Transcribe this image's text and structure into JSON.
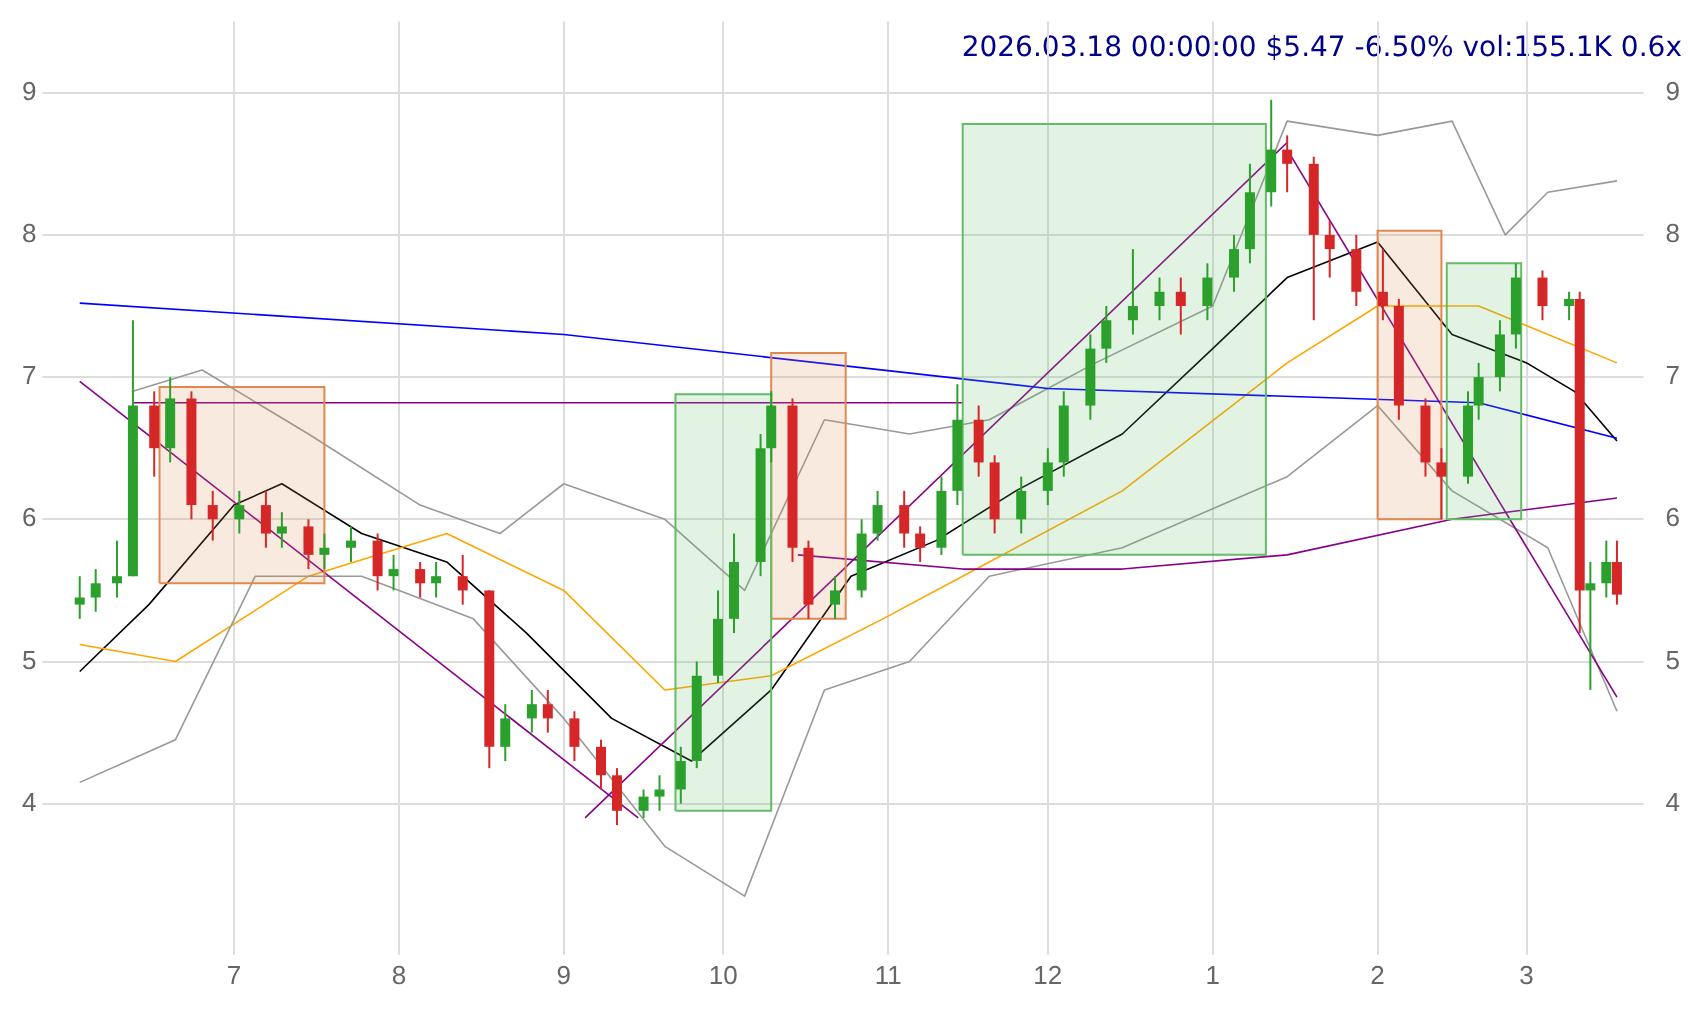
{
  "chart_data": {
    "type": "candlestick",
    "title": "2026.03.18 00:00:00 $5.47 -6.50% vol:155.1K 0.6x",
    "x": [
      "2025-06-02",
      "2025-06-05",
      "2025-06-09",
      "2025-06-12",
      "2025-06-16",
      "2025-06-19",
      "2025-06-23",
      "2025-06-27",
      "2025-07-02",
      "2025-07-07",
      "2025-07-10",
      "2025-07-15",
      "2025-07-18",
      "2025-07-23",
      "2025-07-28",
      "2025-07-31",
      "2025-08-05",
      "2025-08-08",
      "2025-08-13",
      "2025-08-18",
      "2025-08-21",
      "2025-08-26",
      "2025-08-29",
      "2025-09-03",
      "2025-09-08",
      "2025-09-11",
      "2025-09-16",
      "2025-09-19",
      "2025-09-23",
      "2025-09-26",
      "2025-09-30",
      "2025-10-03",
      "2025-10-08",
      "2025-10-10",
      "2025-10-14",
      "2025-10-17",
      "2025-10-22",
      "2025-10-27",
      "2025-10-30",
      "2025-11-04",
      "2025-11-07",
      "2025-11-11",
      "2025-11-14",
      "2025-11-18",
      "2025-11-21",
      "2025-11-26",
      "2025-12-01",
      "2025-12-04",
      "2025-12-09",
      "2025-12-12",
      "2025-12-17",
      "2025-12-22",
      "2025-12-26",
      "2025-12-31",
      "2026-01-05",
      "2026-01-08",
      "2026-01-12",
      "2026-01-15",
      "2026-01-20",
      "2026-01-23",
      "2026-01-28",
      "2026-02-02",
      "2026-02-05",
      "2026-02-10",
      "2026-02-13",
      "2026-02-18",
      "2026-02-20",
      "2026-02-24",
      "2026-02-27",
      "2026-03-04",
      "2026-03-09",
      "2026-03-11",
      "2026-03-13",
      "2026-03-16",
      "2026-03-18"
    ],
    "ohlc": [
      [
        5.4,
        5.6,
        5.3,
        5.45
      ],
      [
        5.45,
        5.65,
        5.35,
        5.55
      ],
      [
        5.55,
        5.85,
        5.45,
        5.6
      ],
      [
        5.6,
        7.4,
        5.6,
        6.8
      ],
      [
        6.8,
        6.9,
        6.3,
        6.5
      ],
      [
        6.5,
        7.0,
        6.4,
        6.85
      ],
      [
        6.85,
        6.9,
        6.0,
        6.1
      ],
      [
        6.1,
        6.2,
        5.85,
        6.0
      ],
      [
        6.0,
        6.2,
        5.9,
        6.1
      ],
      [
        6.1,
        6.2,
        5.8,
        5.9
      ],
      [
        5.9,
        6.05,
        5.8,
        5.95
      ],
      [
        5.95,
        6.0,
        5.65,
        5.75
      ],
      [
        5.75,
        5.9,
        5.65,
        5.8
      ],
      [
        5.8,
        5.95,
        5.7,
        5.85
      ],
      [
        5.85,
        5.9,
        5.5,
        5.6
      ],
      [
        5.6,
        5.75,
        5.5,
        5.65
      ],
      [
        5.65,
        5.7,
        5.45,
        5.55
      ],
      [
        5.55,
        5.7,
        5.45,
        5.6
      ],
      [
        5.6,
        5.75,
        5.4,
        5.5
      ],
      [
        5.5,
        5.5,
        4.25,
        4.4
      ],
      [
        4.4,
        4.7,
        4.3,
        4.6
      ],
      [
        4.6,
        4.8,
        4.5,
        4.7
      ],
      [
        4.7,
        4.8,
        4.5,
        4.6
      ],
      [
        4.6,
        4.65,
        4.3,
        4.4
      ],
      [
        4.4,
        4.45,
        4.1,
        4.2
      ],
      [
        4.2,
        4.25,
        3.85,
        3.95
      ],
      [
        3.95,
        4.1,
        3.9,
        4.05
      ],
      [
        4.05,
        4.2,
        3.95,
        4.1
      ],
      [
        4.1,
        4.4,
        4.0,
        4.3
      ],
      [
        4.3,
        5.0,
        4.25,
        4.9
      ],
      [
        4.9,
        5.5,
        4.85,
        5.3
      ],
      [
        5.3,
        5.9,
        5.2,
        5.7
      ],
      [
        5.7,
        6.6,
        5.6,
        6.5
      ],
      [
        6.5,
        6.9,
        6.4,
        6.8
      ],
      [
        6.8,
        6.85,
        5.7,
        5.8
      ],
      [
        5.8,
        5.85,
        5.3,
        5.4
      ],
      [
        5.4,
        5.6,
        5.3,
        5.5
      ],
      [
        5.5,
        6.0,
        5.45,
        5.9
      ],
      [
        5.9,
        6.2,
        5.85,
        6.1
      ],
      [
        6.1,
        6.2,
        5.8,
        5.9
      ],
      [
        5.9,
        5.95,
        5.7,
        5.8
      ],
      [
        5.8,
        6.3,
        5.75,
        6.2
      ],
      [
        6.2,
        6.95,
        6.1,
        6.7
      ],
      [
        6.7,
        6.8,
        6.3,
        6.4
      ],
      [
        6.4,
        6.45,
        5.9,
        6.0
      ],
      [
        6.0,
        6.3,
        5.9,
        6.2
      ],
      [
        6.2,
        6.5,
        6.1,
        6.4
      ],
      [
        6.4,
        6.9,
        6.3,
        6.8
      ],
      [
        6.8,
        7.3,
        6.7,
        7.2
      ],
      [
        7.2,
        7.5,
        7.1,
        7.4
      ],
      [
        7.4,
        7.9,
        7.3,
        7.5
      ],
      [
        7.5,
        7.7,
        7.4,
        7.6
      ],
      [
        7.6,
        7.7,
        7.3,
        7.5
      ],
      [
        7.5,
        7.8,
        7.4,
        7.7
      ],
      [
        7.7,
        8.0,
        7.6,
        7.9
      ],
      [
        7.9,
        8.5,
        7.8,
        8.3
      ],
      [
        8.3,
        8.95,
        8.2,
        8.6
      ],
      [
        8.6,
        8.7,
        8.3,
        8.5
      ],
      [
        8.5,
        8.55,
        7.4,
        8.0
      ],
      [
        8.0,
        8.1,
        7.7,
        7.9
      ],
      [
        7.9,
        8.0,
        7.5,
        7.6
      ],
      [
        7.6,
        7.9,
        7.4,
        7.5
      ],
      [
        7.5,
        7.55,
        6.7,
        6.8
      ],
      [
        6.8,
        6.85,
        6.3,
        6.4
      ],
      [
        6.4,
        6.5,
        6.0,
        6.3
      ],
      [
        6.3,
        6.9,
        6.25,
        6.8
      ],
      [
        6.8,
        7.1,
        6.7,
        7.0
      ],
      [
        7.0,
        7.4,
        6.9,
        7.3
      ],
      [
        7.3,
        7.8,
        7.2,
        7.7
      ],
      [
        7.7,
        7.75,
        7.4,
        7.5
      ],
      [
        7.5,
        7.6,
        7.4,
        7.55
      ],
      [
        7.55,
        7.6,
        5.2,
        5.5
      ],
      [
        5.5,
        5.7,
        4.8,
        5.55
      ],
      [
        5.55,
        5.85,
        5.45,
        5.7
      ],
      [
        5.7,
        5.85,
        5.4,
        5.47
      ]
    ],
    "colors": [
      "#2ca02c",
      "#2ca02c",
      "#2ca02c",
      "#2ca02c",
      "#d62728",
      "#2ca02c",
      "#d62728",
      "#d62728",
      "#2ca02c",
      "#d62728",
      "#2ca02c",
      "#d62728",
      "#2ca02c",
      "#2ca02c",
      "#d62728",
      "#2ca02c",
      "#d62728",
      "#2ca02c",
      "#d62728",
      "#d62728",
      "#2ca02c",
      "#2ca02c",
      "#d62728",
      "#d62728",
      "#d62728",
      "#d62728",
      "#2ca02c",
      "#2ca02c",
      "#2ca02c",
      "#2ca02c",
      "#2ca02c",
      "#2ca02c",
      "#2ca02c",
      "#2ca02c",
      "#d62728",
      "#d62728",
      "#2ca02c",
      "#2ca02c",
      "#2ca02c",
      "#d62728",
      "#d62728",
      "#2ca02c",
      "#2ca02c",
      "#d62728",
      "#d62728",
      "#2ca02c",
      "#2ca02c",
      "#2ca02c",
      "#2ca02c",
      "#2ca02c",
      "#2ca02c",
      "#2ca02c",
      "#d62728",
      "#2ca02c",
      "#2ca02c",
      "#2ca02c",
      "#2ca02c",
      "#d62728",
      "#d62728",
      "#d62728",
      "#d62728",
      "#d62728",
      "#d62728",
      "#d62728",
      "#d62728",
      "#2ca02c",
      "#2ca02c",
      "#2ca02c",
      "#2ca02c",
      "#d62728",
      "#2ca02c",
      "#d62728",
      "#2ca02c",
      "#2ca02c",
      "#d62728"
    ],
    "series": [
      {
        "type": "area",
        "color": "#e08850",
        "x": [
          "2025-06-17",
          "2025-06-17",
          "2025-07-18",
          "2025-07-18",
          "2025-06-17"
        ],
        "values": [
          5.55,
          6.93,
          6.93,
          5.55,
          5.55
        ]
      },
      {
        "type": "area",
        "color": "#66bb66",
        "x": [
          "2025-09-22",
          "2025-09-22",
          "2025-10-10",
          "2025-10-10",
          "2025-09-22"
        ],
        "values": [
          3.95,
          6.88,
          6.88,
          3.95,
          3.95
        ]
      },
      {
        "type": "area",
        "color": "#e08850",
        "x": [
          "2025-10-10",
          "2025-10-10",
          "2025-10-24",
          "2025-10-24",
          "2025-10-10"
        ],
        "values": [
          5.3,
          7.17,
          7.17,
          5.3,
          5.3
        ]
      },
      {
        "type": "area",
        "color": "#66bb66",
        "x": [
          "2025-11-15",
          "2025-11-15",
          "2026-01-11",
          "2026-01-11",
          "2025-11-15"
        ],
        "values": [
          5.75,
          8.78,
          8.78,
          5.75,
          5.75
        ]
      },
      {
        "type": "area",
        "color": "#e08850",
        "x": [
          "2026-02-01",
          "2026-02-01",
          "2026-02-13",
          "2026-02-13",
          "2026-02-01"
        ],
        "values": [
          6.0,
          8.03,
          8.03,
          6.0,
          6.0
        ]
      },
      {
        "type": "area",
        "color": "#66bb66",
        "x": [
          "2026-02-14",
          "2026-02-14",
          "2026-02-28",
          "2026-02-28",
          "2026-02-14"
        ],
        "values": [
          6.0,
          7.8,
          7.8,
          6.0,
          6.0
        ]
      },
      {
        "type": "line",
        "color": "#0000ff",
        "x": [
          "2025-06-02",
          "2025-09-01",
          "2025-12-01",
          "2026-02-20",
          "2026-03-18"
        ],
        "values": [
          7.52,
          7.3,
          6.92,
          6.82,
          6.57
        ]
      },
      {
        "type": "line",
        "color": "#880088",
        "x": [
          "2025-06-12",
          "2025-11-15"
        ],
        "values": [
          6.82,
          6.82
        ]
      },
      {
        "type": "line",
        "color": "#880088",
        "x": [
          "2025-10-15",
          "2025-11-15",
          "2025-12-15",
          "2026-01-15",
          "2026-02-15",
          "2026-03-18"
        ],
        "values": [
          5.75,
          5.65,
          5.65,
          5.75,
          6.0,
          6.15
        ]
      },
      {
        "type": "line",
        "color": "#880088",
        "x": [
          "2025-06-02",
          "2025-09-15"
        ],
        "values": [
          6.97,
          3.9
        ]
      },
      {
        "type": "line",
        "color": "#880088",
        "x": [
          "2025-09-05",
          "2026-01-15"
        ],
        "values": [
          3.9,
          8.65
        ]
      },
      {
        "type": "line",
        "color": "#880088",
        "x": [
          "2026-01-15",
          "2026-03-18"
        ],
        "values": [
          8.6,
          4.75
        ]
      },
      {
        "type": "line",
        "color": "#999999",
        "x": [
          "2025-06-12",
          "2025-06-25",
          "2025-07-15",
          "2025-08-05",
          "2025-08-20",
          "2025-09-01",
          "2025-09-20",
          "2025-10-05",
          "2025-10-20",
          "2025-11-05",
          "2025-11-20",
          "2025-12-10",
          "2026-01-01",
          "2026-01-15",
          "2026-02-01",
          "2026-02-15",
          "2026-02-25",
          "2026-03-05",
          "2026-03-18"
        ],
        "values": [
          6.9,
          7.05,
          6.6,
          6.1,
          5.9,
          6.25,
          6.0,
          5.5,
          6.7,
          6.6,
          6.7,
          7.1,
          7.5,
          8.8,
          8.7,
          8.8,
          8.0,
          8.3,
          8.38
        ]
      },
      {
        "type": "line",
        "color": "#999999",
        "x": [
          "2025-06-02",
          "2025-06-20",
          "2025-07-05",
          "2025-07-25",
          "2025-08-15",
          "2025-09-01",
          "2025-09-20",
          "2025-10-05",
          "2025-10-20",
          "2025-11-05",
          "2025-11-20",
          "2025-12-15",
          "2026-01-15",
          "2026-02-01",
          "2026-02-15",
          "2026-03-05",
          "2026-03-18"
        ],
        "values": [
          4.15,
          4.45,
          5.6,
          5.6,
          5.3,
          4.6,
          3.7,
          3.35,
          4.8,
          5.0,
          5.6,
          5.8,
          6.3,
          6.8,
          6.2,
          5.8,
          4.65
        ]
      },
      {
        "type": "line",
        "color": "#ffa500",
        "x": [
          "2025-06-02",
          "2025-06-20",
          "2025-07-15",
          "2025-08-10",
          "2025-09-01",
          "2025-09-20",
          "2025-10-10",
          "2025-10-31",
          "2025-11-20",
          "2025-12-15",
          "2026-01-15",
          "2026-02-01",
          "2026-02-20",
          "2026-03-18"
        ],
        "values": [
          5.12,
          5.0,
          5.6,
          5.9,
          5.5,
          4.8,
          4.9,
          5.3,
          5.7,
          6.2,
          7.1,
          7.5,
          7.5,
          7.1
        ]
      },
      {
        "type": "line",
        "color": "#000000",
        "x": [
          "2025-06-02",
          "2025-06-15",
          "2025-07-01",
          "2025-07-10",
          "2025-07-25",
          "2025-08-10",
          "2025-08-25",
          "2025-09-10",
          "2025-09-25",
          "2025-10-10",
          "2025-10-25",
          "2025-11-10",
          "2025-11-25",
          "2025-12-15",
          "2026-01-01",
          "2026-01-15",
          "2026-02-01",
          "2026-02-15",
          "2026-03-01",
          "2026-03-10",
          "2026-03-18"
        ],
        "values": [
          4.93,
          5.4,
          6.1,
          6.25,
          5.9,
          5.7,
          5.2,
          4.6,
          4.3,
          4.8,
          5.6,
          5.85,
          6.2,
          6.6,
          7.2,
          7.7,
          7.95,
          7.3,
          7.1,
          6.9,
          6.55
        ]
      }
    ],
    "xlim": [
      "2025-05-29",
      "2026-03-23"
    ],
    "xticks": [
      {
        "value": "2025-07-01",
        "label": "7"
      },
      {
        "value": "2025-08-01",
        "label": "8"
      },
      {
        "value": "2025-09-01",
        "label": "9"
      },
      {
        "value": "2025-10-01",
        "label": "10"
      },
      {
        "value": "2025-11-01",
        "label": "11"
      },
      {
        "value": "2025-12-01",
        "label": "12"
      },
      {
        "value": "2026-01-01",
        "label": "1"
      },
      {
        "value": "2026-02-01",
        "label": "2"
      },
      {
        "value": "2026-03-01",
        "label": "3"
      }
    ],
    "ylim": [
      3.05,
      9.5
    ],
    "yticks": [
      4,
      5,
      6,
      7,
      8,
      9
    ],
    "y2lim": [
      3.05,
      9.5
    ],
    "y2ticks": [
      4,
      5,
      6,
      7,
      8,
      9
    ],
    "grid": true,
    "legend": false
  }
}
